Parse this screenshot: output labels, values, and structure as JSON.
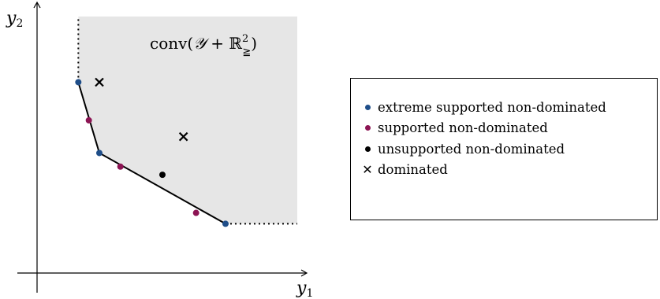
{
  "axes": {
    "x_label": "y",
    "x_sub": "1",
    "y_label": "y",
    "y_sub": "2"
  },
  "hull_label": {
    "prefix": "conv(",
    "set": "𝒴",
    "plus": " + ",
    "reals": "ℝ",
    "sup": "2",
    "sub": "≧",
    "suffix": ")"
  },
  "colors": {
    "extreme": "#1f4e89",
    "supported": "#8c1453",
    "unsupported": "#000000",
    "dominated": "#000000",
    "region": "#e6e6e6"
  },
  "legend": {
    "items": [
      {
        "label": "extreme supported non-dominated",
        "marker": "dot",
        "color": "#1f4e89"
      },
      {
        "label": "supported non-dominated",
        "marker": "dot",
        "color": "#8c1453"
      },
      {
        "label": "unsupported non-dominated",
        "marker": "dot",
        "color": "#000000"
      },
      {
        "label": "dominated",
        "marker": "cross",
        "color": "#000000"
      }
    ]
  },
  "points": {
    "extreme": [
      [
        1,
        6.2
      ],
      [
        1.5,
        3.6
      ],
      [
        4.5,
        1
      ]
    ],
    "supported": [
      [
        1.25,
        4.8
      ],
      [
        2,
        3.1
      ],
      [
        3.8,
        1.4
      ]
    ],
    "unsupported": [
      [
        3.0,
        2.8
      ]
    ],
    "dominated": [
      [
        1.5,
        6.2
      ],
      [
        3.5,
        4.2
      ]
    ]
  }
}
